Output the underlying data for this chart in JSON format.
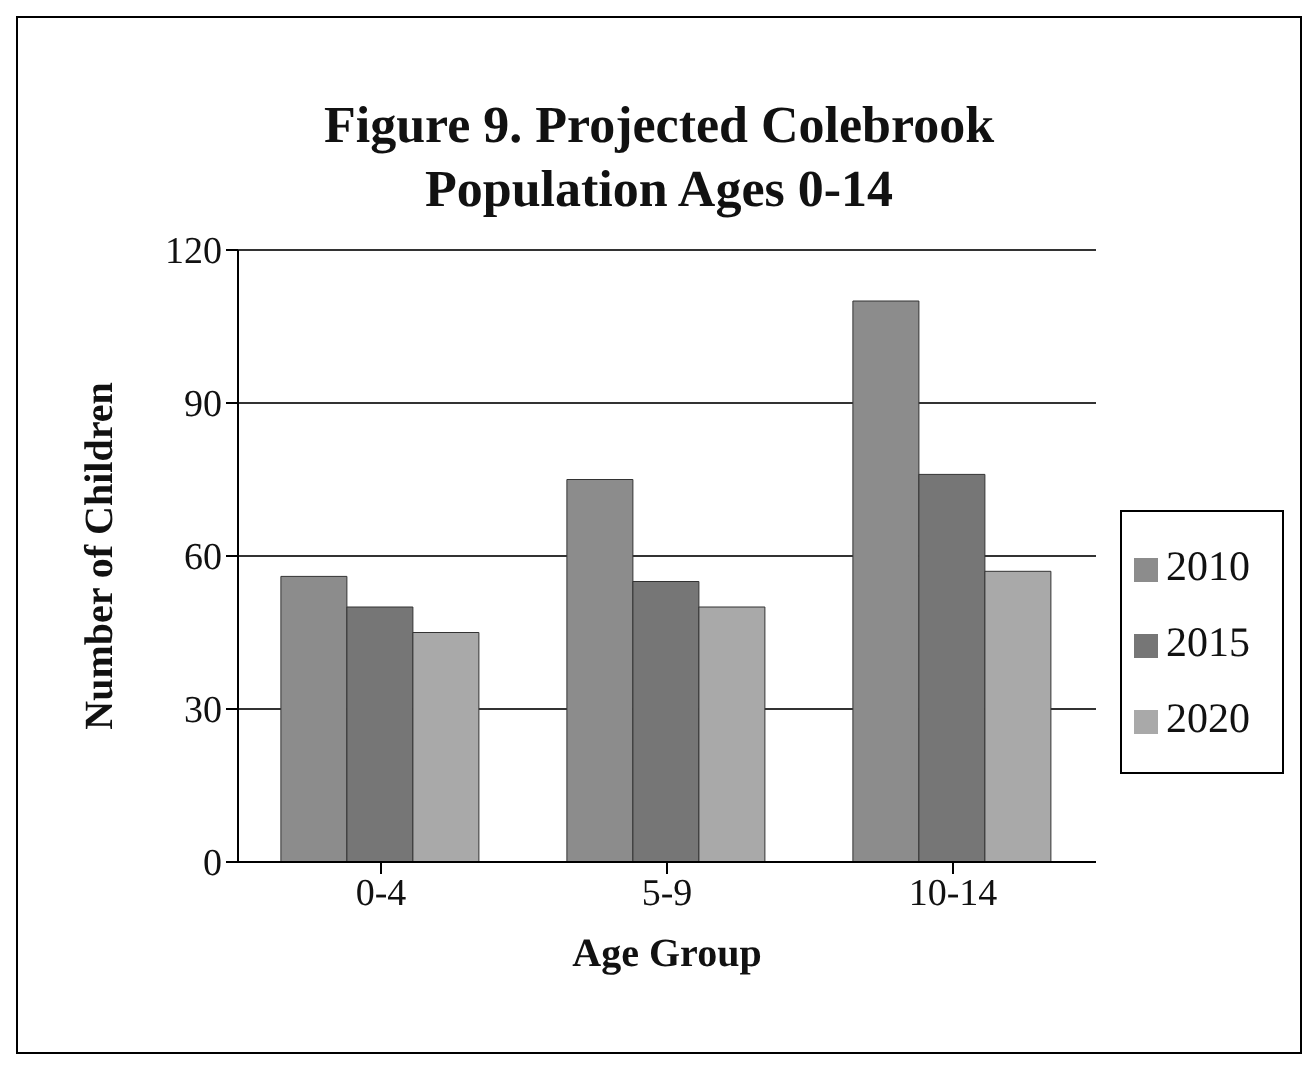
{
  "chart_data": {
    "type": "bar",
    "title": "Figure 9. Projected Colebrook Population Ages 0-14",
    "xlabel": "Age Group",
    "ylabel": "Number of Children",
    "categories": [
      "0-4",
      "5-9",
      "10-14"
    ],
    "series": [
      {
        "name": "2010",
        "color": "#8c8c8c",
        "values": [
          56,
          75,
          110
        ]
      },
      {
        "name": "2015",
        "color": "#767676",
        "values": [
          50,
          55,
          76
        ]
      },
      {
        "name": "2020",
        "color": "#a9a9a9",
        "values": [
          45,
          50,
          57
        ]
      }
    ],
    "ylim": [
      0,
      120
    ],
    "yticks": [
      0,
      30,
      60,
      90,
      120
    ],
    "grid": "y",
    "legend": "right"
  }
}
